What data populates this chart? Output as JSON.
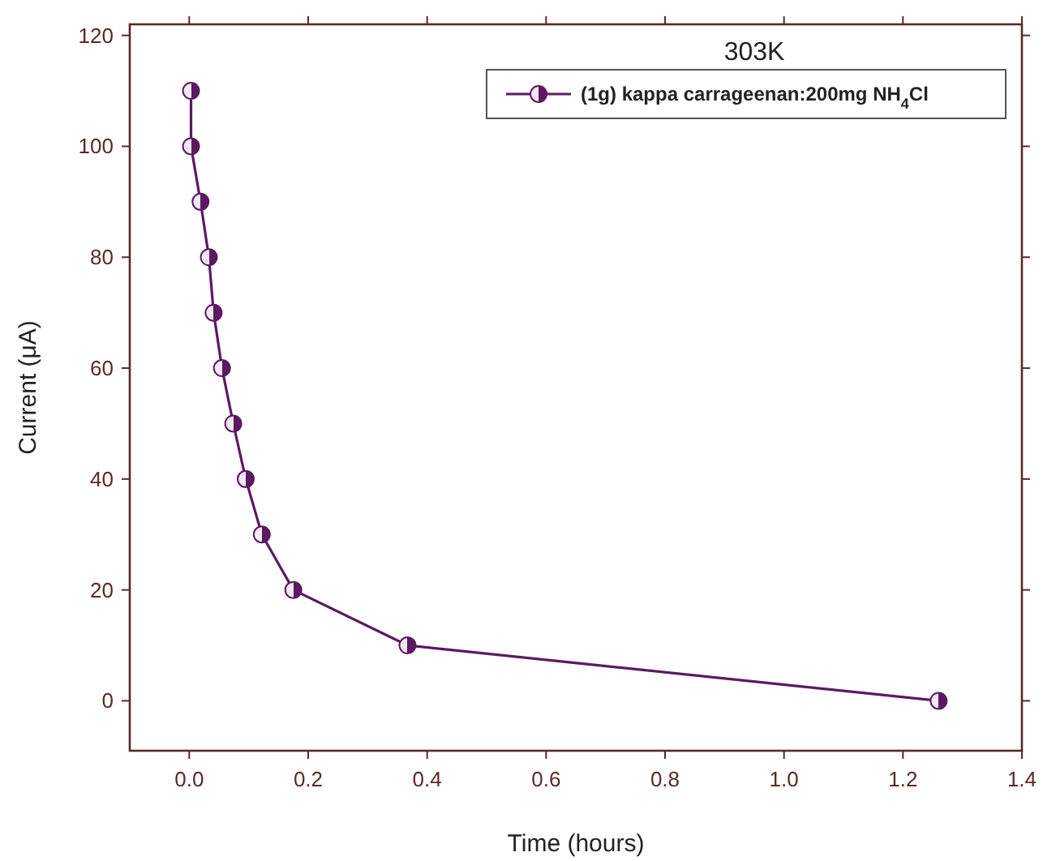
{
  "chart_data": {
    "type": "line",
    "title": "303K",
    "xlabel": "Time (hours)",
    "ylabel": "Current (μA)",
    "xlim": [
      -0.1,
      1.4
    ],
    "xticks": [
      {
        "value": 0,
        "label": "0.0"
      },
      {
        "value": 0.2,
        "label": "0.2"
      },
      {
        "value": 0.4,
        "label": "0.4"
      },
      {
        "value": 0.6,
        "label": "0.6"
      },
      {
        "value": 0.8,
        "label": "0.8"
      },
      {
        "value": 1,
        "label": "1.0"
      },
      {
        "value": 1.2,
        "label": "1.2"
      },
      {
        "value": 1.4,
        "label": "1.4"
      }
    ],
    "ylim": [
      -9,
      122
    ],
    "yticks": [
      0,
      20,
      40,
      60,
      80,
      100,
      120
    ],
    "marker": "circle",
    "line_style": "solid",
    "legend": "top right",
    "grid": false,
    "series": [
      {
        "name": "(1g) kappa carrageenan:200mg NH$_{4}$Cl",
        "color": "#5b1a60",
        "x": [
          0.003,
          0.003,
          0.019,
          0.033,
          0.041,
          0.055,
          0.074,
          0.095,
          0.122,
          0.175,
          0.367,
          1.26
        ],
        "values": [
          110,
          100,
          90,
          80,
          70,
          60,
          50,
          40,
          30,
          20,
          10,
          0
        ]
      }
    ]
  }
}
